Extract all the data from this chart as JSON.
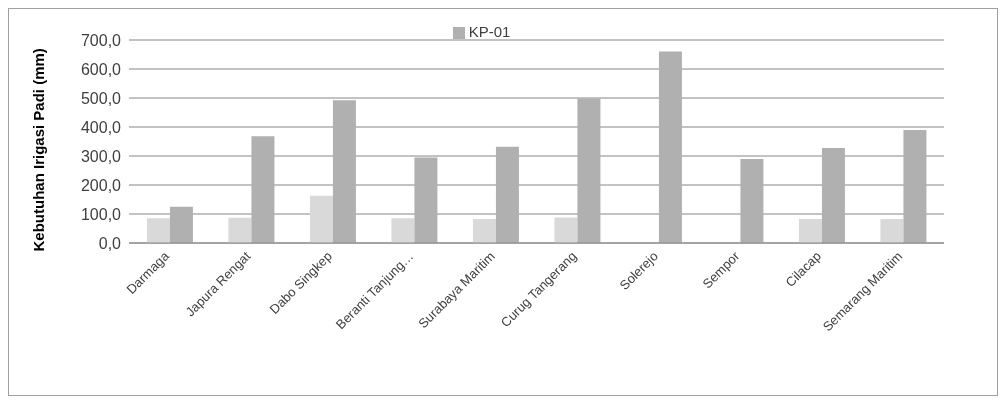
{
  "chart_data": {
    "type": "bar",
    "ylabel": "Kebutuhan Irigasi Padi (mm)",
    "categories": [
      "Darmaga",
      "Japura Rengat",
      "Dabo Singkep",
      "Beranti Tanjung…",
      "Surabaya Maritim",
      "Curug Tangerang",
      "Solerejo",
      "Sempor",
      "Cilacap",
      "Semarang Maritim"
    ],
    "series": [
      {
        "color": "#d9d9d9",
        "values": [
          85,
          87,
          163,
          85,
          83,
          88,
          null,
          null,
          83,
          83
        ]
      },
      {
        "name": "KP-01",
        "color": "#b0b0b0",
        "values": [
          125,
          368,
          492,
          295,
          332,
          498,
          660,
          290,
          328,
          390
        ]
      }
    ],
    "ylim": [
      0,
      700
    ],
    "yticks": [
      {
        "value": 0,
        "label": "0,0"
      },
      {
        "value": 100,
        "label": "100,0"
      },
      {
        "value": 200,
        "label": "200,0"
      },
      {
        "value": 300,
        "label": "300,0"
      },
      {
        "value": 400,
        "label": "400,0"
      },
      {
        "value": 500,
        "label": "500,0"
      },
      {
        "value": 600,
        "label": "600,0"
      },
      {
        "value": 700,
        "label": "700,0"
      }
    ],
    "grid": "y",
    "legend": "top"
  }
}
